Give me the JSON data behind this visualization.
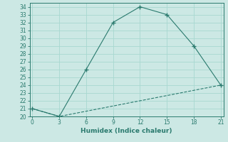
{
  "xlabel": "Humidex (Indice chaleur)",
  "bg_color": "#cce8e4",
  "line1_x": [
    0,
    3,
    6,
    9,
    12,
    15,
    18,
    21
  ],
  "line1_y": [
    21,
    20,
    26,
    32,
    34,
    33,
    29,
    24
  ],
  "line2_x": [
    0,
    3,
    21
  ],
  "line2_y": [
    21,
    20,
    24
  ],
  "line_color": "#2a7a6e",
  "xlim": [
    -0.3,
    21.3
  ],
  "ylim": [
    20,
    34.5
  ],
  "xticks": [
    0,
    3,
    6,
    9,
    12,
    15,
    18,
    21
  ],
  "yticks": [
    20,
    21,
    22,
    23,
    24,
    25,
    26,
    27,
    28,
    29,
    30,
    31,
    32,
    33,
    34
  ],
  "grid_color": "#a8d8d0",
  "tick_fontsize": 5.5,
  "xlabel_fontsize": 6.5
}
